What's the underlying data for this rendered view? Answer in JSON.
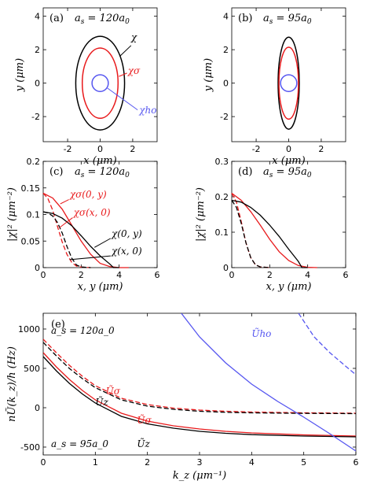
{
  "colors": {
    "black": "#000000",
    "red": "#e8191b",
    "blue": "#5656f0"
  },
  "chart_data": [
    {
      "id": "a",
      "type": "line",
      "panel_label": "(a)",
      "title": "a_s = 120a_0",
      "xlabel": "x  (μm)",
      "ylabel": "y  (μm)",
      "xlim": [
        -3.5,
        3.5
      ],
      "ylim": [
        -3.5,
        4.5
      ],
      "xticks": [
        -2,
        0,
        2
      ],
      "yticks": [
        -2,
        0,
        2,
        4
      ],
      "ellipses": [
        {
          "name": "χ",
          "color": "black",
          "rx": 1.5,
          "ry": 2.8
        },
        {
          "name": "χσ",
          "color": "red",
          "rx": 1.1,
          "ry": 2.1
        },
        {
          "name": "χho",
          "color": "blue",
          "rx": 0.5,
          "ry": 0.5
        }
      ],
      "annotations": [
        "χ",
        "χσ",
        "χho"
      ]
    },
    {
      "id": "b",
      "type": "line",
      "panel_label": "(b)",
      "title": "a_s = 95a_0",
      "xlabel": "x  (μm)",
      "ylabel": "y  (μm)",
      "xlim": [
        -3.5,
        3.5
      ],
      "ylim": [
        -3.5,
        4.5
      ],
      "xticks": [
        -2,
        0,
        2
      ],
      "yticks": [
        -2,
        0,
        2,
        4
      ],
      "ellipses": [
        {
          "name": "χ",
          "color": "black",
          "rx": 0.65,
          "ry": 2.75
        },
        {
          "name": "χσ",
          "color": "red",
          "rx": 0.6,
          "ry": 2.15
        },
        {
          "name": "χho",
          "color": "blue",
          "rx": 0.5,
          "ry": 0.5
        }
      ]
    },
    {
      "id": "c",
      "type": "line",
      "panel_label": "(c)",
      "title": "a_s = 120a_0",
      "xlabel": "x, y  (μm)",
      "ylabel": "|χ|²  (μm⁻²)",
      "xlim": [
        0,
        6
      ],
      "ylim": [
        0,
        0.2
      ],
      "xticks": [
        0,
        2,
        4,
        6
      ],
      "yticks": [
        0,
        0.05,
        0.1,
        0.15,
        0.2
      ],
      "series": [
        {
          "name": "χσ(0,y)",
          "color": "red",
          "dash": false,
          "x": [
            0,
            0.5,
            1,
            1.5,
            2,
            2.5,
            3,
            3.5,
            4,
            4.5
          ],
          "y": [
            0.14,
            0.131,
            0.11,
            0.08,
            0.05,
            0.025,
            0.008,
            0.002,
            0,
            0
          ]
        },
        {
          "name": "χσ(x,0)",
          "color": "red",
          "dash": true,
          "x": [
            0,
            0.25,
            0.5,
            0.75,
            1,
            1.25,
            1.5,
            1.75,
            2,
            2.5
          ],
          "y": [
            0.14,
            0.13,
            0.108,
            0.078,
            0.048,
            0.025,
            0.01,
            0.003,
            0.001,
            0
          ]
        },
        {
          "name": "χ(0,y)",
          "color": "black",
          "dash": false,
          "x": [
            0,
            0.5,
            1,
            1.5,
            2,
            2.5,
            3,
            3.5,
            3.7,
            4
          ],
          "y": [
            0.105,
            0.102,
            0.093,
            0.079,
            0.06,
            0.04,
            0.022,
            0.007,
            0,
            0
          ]
        },
        {
          "name": "χ(x,0)",
          "color": "black",
          "dash": true,
          "x": [
            0,
            0.25,
            0.5,
            0.75,
            1,
            1.25,
            1.5,
            1.75,
            2,
            2.5
          ],
          "y": [
            0.105,
            0.103,
            0.097,
            0.085,
            0.065,
            0.04,
            0.018,
            0.005,
            0.001,
            0
          ]
        }
      ],
      "annotations": [
        "χσ(0, y)",
        "χσ(x, 0)",
        "χ(0, y)",
        "χ(x, 0)"
      ]
    },
    {
      "id": "d",
      "type": "line",
      "panel_label": "(d)",
      "title": "a_s = 95a_0",
      "xlabel": "x, y  (μm)",
      "ylabel": "|χ|²  (μm⁻²)",
      "xlim": [
        0,
        6
      ],
      "ylim": [
        0,
        0.3
      ],
      "xticks": [
        0,
        2,
        4,
        6
      ],
      "yticks": [
        0,
        0.1,
        0.2,
        0.3
      ],
      "series": [
        {
          "name": "χσ(0,y)",
          "color": "red",
          "dash": false,
          "x": [
            0,
            0.5,
            1,
            1.5,
            2,
            2.5,
            3,
            3.5,
            4,
            4.5
          ],
          "y": [
            0.21,
            0.19,
            0.158,
            0.12,
            0.08,
            0.045,
            0.02,
            0.006,
            0.001,
            0
          ]
        },
        {
          "name": "χσ(x,0)",
          "color": "red",
          "dash": true,
          "x": [
            0,
            0.25,
            0.5,
            0.75,
            1,
            1.25,
            1.5,
            2
          ],
          "y": [
            0.21,
            0.185,
            0.13,
            0.07,
            0.028,
            0.008,
            0.002,
            0
          ]
        },
        {
          "name": "χ(0,y)",
          "color": "black",
          "dash": false,
          "x": [
            0,
            0.5,
            1,
            1.5,
            2,
            2.5,
            3,
            3.5,
            3.7,
            4
          ],
          "y": [
            0.19,
            0.185,
            0.17,
            0.148,
            0.12,
            0.088,
            0.052,
            0.018,
            0,
            0
          ]
        },
        {
          "name": "χ(x,0)",
          "color": "black",
          "dash": true,
          "x": [
            0,
            0.25,
            0.5,
            0.75,
            1,
            1.25,
            1.5,
            2
          ],
          "y": [
            0.19,
            0.17,
            0.125,
            0.07,
            0.028,
            0.008,
            0.002,
            0
          ]
        }
      ]
    },
    {
      "id": "e",
      "type": "line",
      "panel_label": "(e)",
      "xlabel": "k_z  (μm⁻¹)",
      "ylabel": "nŨ(k_z)/h  (Hz)",
      "xlim": [
        0,
        6
      ],
      "ylim": [
        -600,
        1200
      ],
      "xticks": [
        0,
        1,
        2,
        3,
        4,
        5,
        6
      ],
      "yticks": [
        -500,
        0,
        500,
        1000
      ],
      "series": [
        {
          "name": "Ũσ (a_s=120a_0)",
          "color": "red",
          "dash": true,
          "x": [
            0,
            0.25,
            0.5,
            0.75,
            1,
            1.5,
            2,
            2.5,
            3,
            3.5,
            4,
            5,
            6
          ],
          "y": [
            870,
            700,
            540,
            400,
            280,
            120,
            40,
            -5,
            -30,
            -45,
            -55,
            -65,
            -70
          ]
        },
        {
          "name": "Ũz (a_s=120a_0)",
          "color": "black",
          "dash": true,
          "x": [
            0,
            0.25,
            0.5,
            0.75,
            1,
            1.5,
            2,
            2.5,
            3,
            3.5,
            4,
            5,
            6
          ],
          "y": [
            830,
            660,
            500,
            370,
            255,
            100,
            20,
            -20,
            -45,
            -58,
            -65,
            -72,
            -75
          ]
        },
        {
          "name": "Ũσ (a_s=95a_0)",
          "color": "red",
          "dash": false,
          "x": [
            0,
            0.25,
            0.5,
            0.75,
            1,
            1.5,
            2,
            2.5,
            3,
            3.5,
            4,
            5,
            6
          ],
          "y": [
            700,
            520,
            360,
            220,
            100,
            -70,
            -170,
            -230,
            -270,
            -300,
            -320,
            -345,
            -360
          ]
        },
        {
          "name": "Ũz (a_s=95a_0)",
          "color": "black",
          "dash": false,
          "x": [
            0,
            0.25,
            0.5,
            0.75,
            1,
            1.5,
            2,
            2.5,
            3,
            3.5,
            4,
            5,
            6
          ],
          "y": [
            650,
            470,
            310,
            175,
            60,
            -110,
            -205,
            -260,
            -300,
            -325,
            -342,
            -360,
            -370
          ]
        },
        {
          "name": "Ũho",
          "color": "blue",
          "dash": false,
          "x": [
            2.65,
            3,
            3.5,
            4,
            4.5,
            5,
            5.5,
            6
          ],
          "y": [
            1200,
            900,
            570,
            300,
            80,
            -120,
            -330,
            -550
          ]
        },
        {
          "name": "Ũho (dashed)",
          "color": "blue",
          "dash": true,
          "x": [
            4.9,
            5.2,
            5.5,
            5.8,
            6
          ],
          "y": [
            1200,
            900,
            700,
            530,
            420
          ]
        }
      ],
      "annotations": [
        "a_s = 120a_0",
        "a_s = 95a_0",
        "Ũσ",
        "Ũz",
        "Ũσ",
        "Ũz",
        "Ũho"
      ]
    }
  ]
}
